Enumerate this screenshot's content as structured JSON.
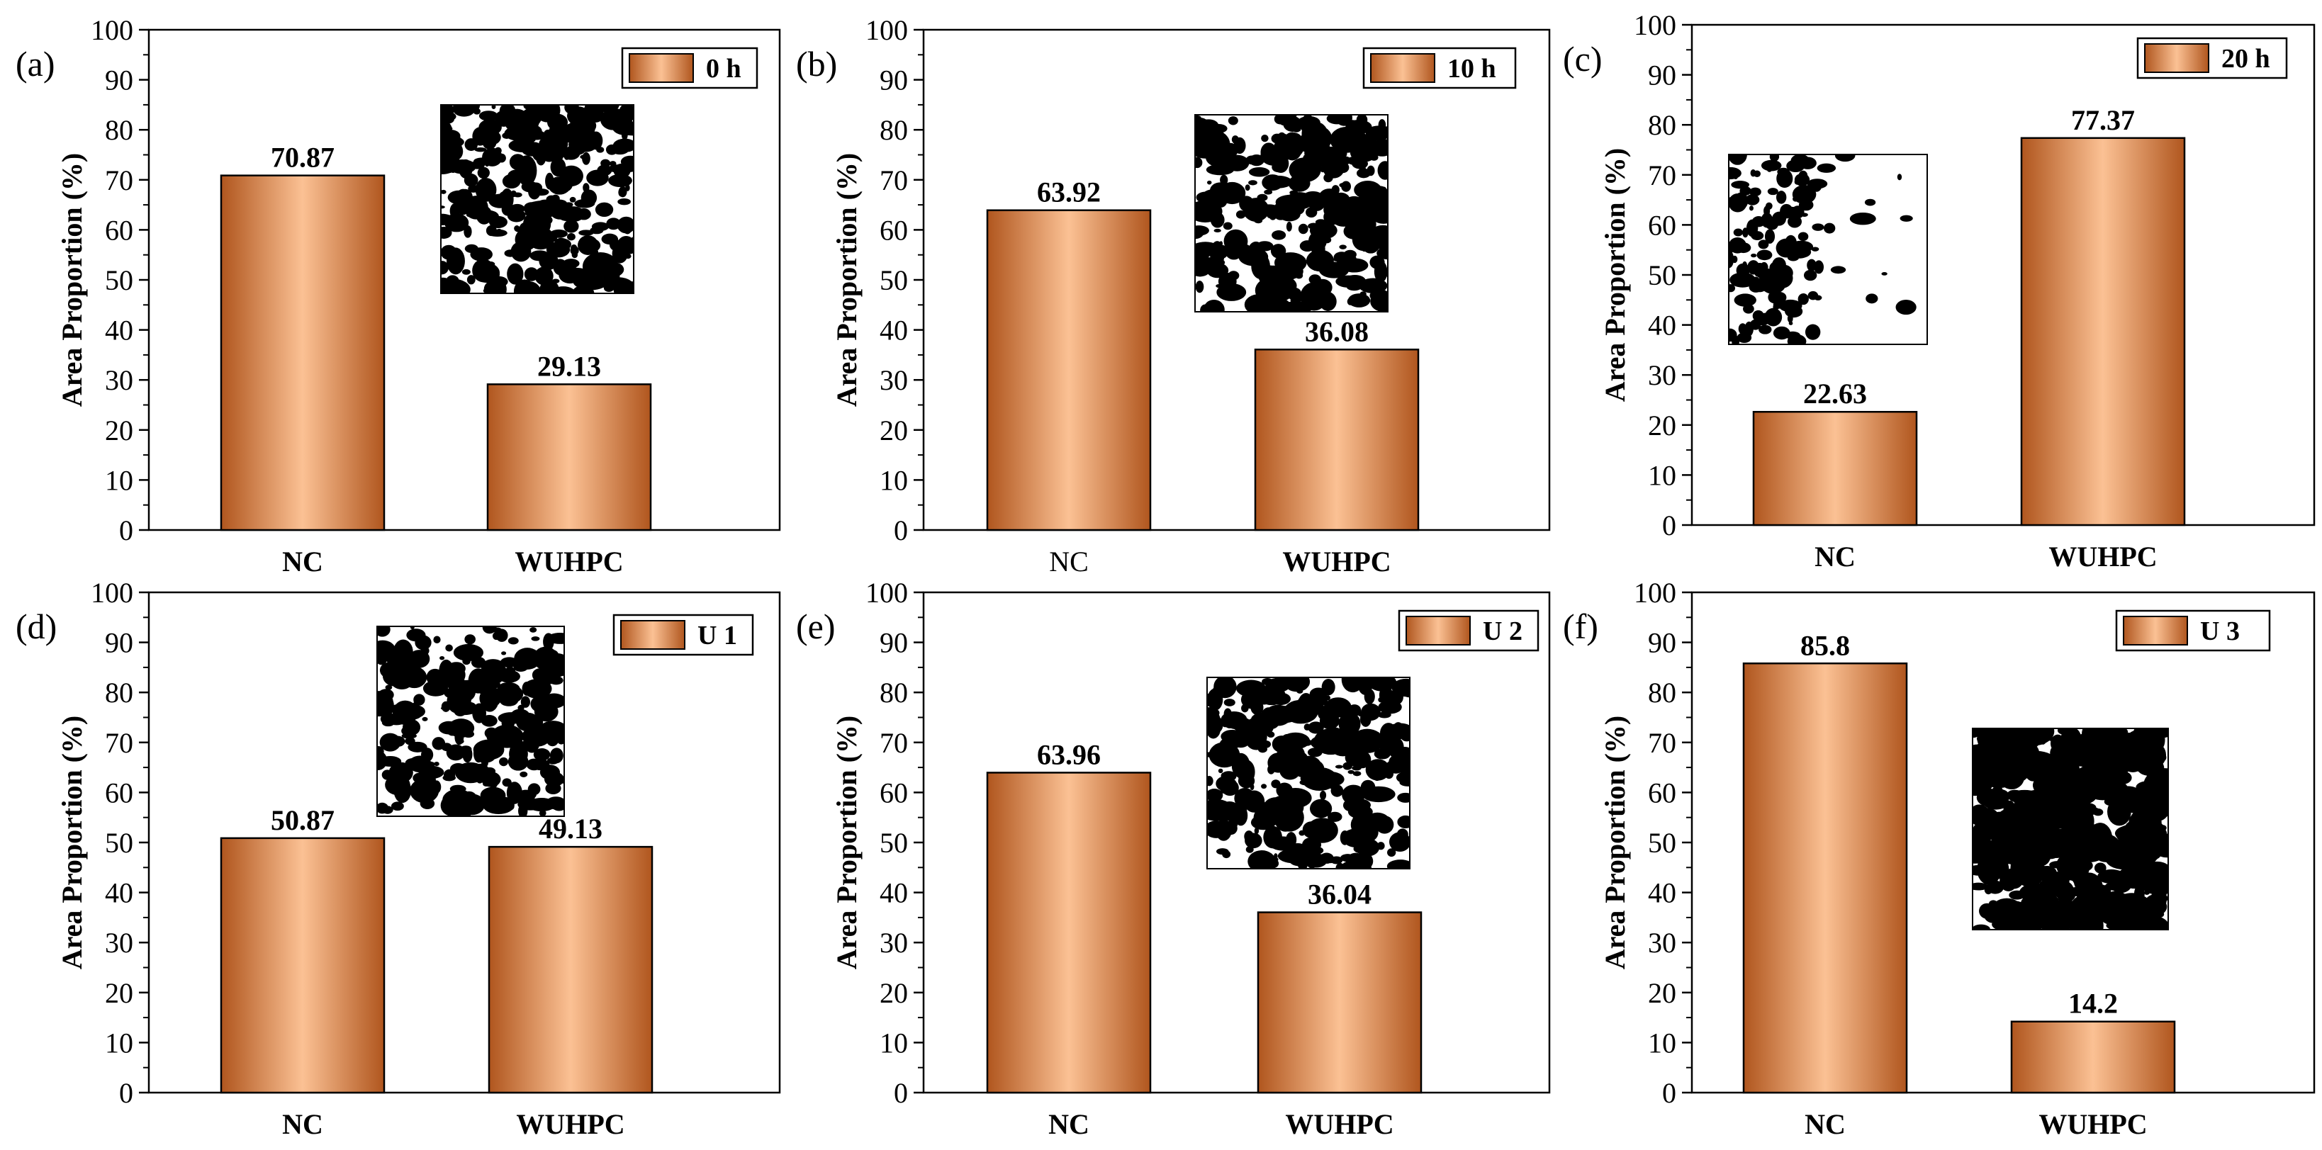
{
  "colors": {
    "bar_edge": "#b0561e",
    "bar_center": "#fbc194",
    "bar_outline": "#000000",
    "axis": "#000000"
  },
  "chart_data": [
    {
      "type": "bar",
      "panel": "(a)",
      "categories": [
        "NC",
        "WUHPC"
      ],
      "category_bold": [
        true,
        true
      ],
      "values": [
        70.87,
        29.13
      ],
      "value_labels": [
        "70.87",
        "29.13"
      ],
      "legend": "0 h",
      "ylabel": "Area Proportion (%)",
      "ylim": [
        0,
        100
      ],
      "yticks": [
        "0",
        "10",
        "20",
        "30",
        "40",
        "50",
        "60",
        "70",
        "80",
        "90",
        "100"
      ],
      "inset": "binary-micrograph",
      "inset_density": 0.55
    },
    {
      "type": "bar",
      "panel": "(b)",
      "categories": [
        "NC",
        "WUHPC"
      ],
      "category_bold": [
        false,
        true
      ],
      "values": [
        63.92,
        36.08
      ],
      "value_labels": [
        "63.92",
        "36.08"
      ],
      "legend": "10 h",
      "ylabel": "Area Proportion (%)",
      "ylim": [
        0,
        100
      ],
      "yticks": [
        "0",
        "10",
        "20",
        "30",
        "40",
        "50",
        "60",
        "70",
        "80",
        "90",
        "100"
      ],
      "inset": "binary-micrograph",
      "inset_density": 0.5
    },
    {
      "type": "bar",
      "panel": "(c)",
      "categories": [
        "NC",
        "WUHPC"
      ],
      "category_bold": [
        true,
        true
      ],
      "values": [
        22.63,
        77.37
      ],
      "value_labels": [
        "22.63",
        "77.37"
      ],
      "legend": "20 h",
      "ylabel": "Area Proportion (%)",
      "ylim": [
        0,
        100
      ],
      "yticks": [
        "0",
        "10",
        "20",
        "30",
        "40",
        "50",
        "60",
        "70",
        "80",
        "90",
        "100"
      ],
      "inset": "binary-micrograph",
      "inset_density": 0.2
    },
    {
      "type": "bar",
      "panel": "(d)",
      "categories": [
        "NC",
        "WUHPC"
      ],
      "category_bold": [
        true,
        true
      ],
      "values": [
        50.87,
        49.13
      ],
      "value_labels": [
        "50.87",
        "49.13"
      ],
      "legend": "U 1",
      "ylabel": "Area Proportion (%)",
      "ylim": [
        0,
        100
      ],
      "yticks": [
        "0",
        "10",
        "20",
        "30",
        "40",
        "50",
        "60",
        "70",
        "80",
        "90",
        "100"
      ],
      "inset": "binary-micrograph",
      "inset_density": 0.45
    },
    {
      "type": "bar",
      "panel": "(e)",
      "categories": [
        "NC",
        "WUHPC"
      ],
      "category_bold": [
        true,
        true
      ],
      "values": [
        63.96,
        36.04
      ],
      "value_labels": [
        "63.96",
        "36.04"
      ],
      "legend": "U 2",
      "ylabel": "Area Proportion (%)",
      "ylim": [
        0,
        100
      ],
      "yticks": [
        "0",
        "10",
        "20",
        "30",
        "40",
        "50",
        "60",
        "70",
        "80",
        "90",
        "100"
      ],
      "inset": "binary-micrograph",
      "inset_density": 0.55
    },
    {
      "type": "bar",
      "panel": "(f)",
      "categories": [
        "NC",
        "WUHPC"
      ],
      "category_bold": [
        true,
        true
      ],
      "values": [
        85.8,
        14.2
      ],
      "value_labels": [
        "85.8",
        "14.2"
      ],
      "legend": "U 3",
      "ylabel": "Area Proportion (%)",
      "ylim": [
        0,
        100
      ],
      "yticks": [
        "0",
        "10",
        "20",
        "30",
        "40",
        "50",
        "60",
        "70",
        "80",
        "90",
        "100"
      ],
      "inset": "binary-micrograph",
      "inset_density": 0.85
    }
  ]
}
